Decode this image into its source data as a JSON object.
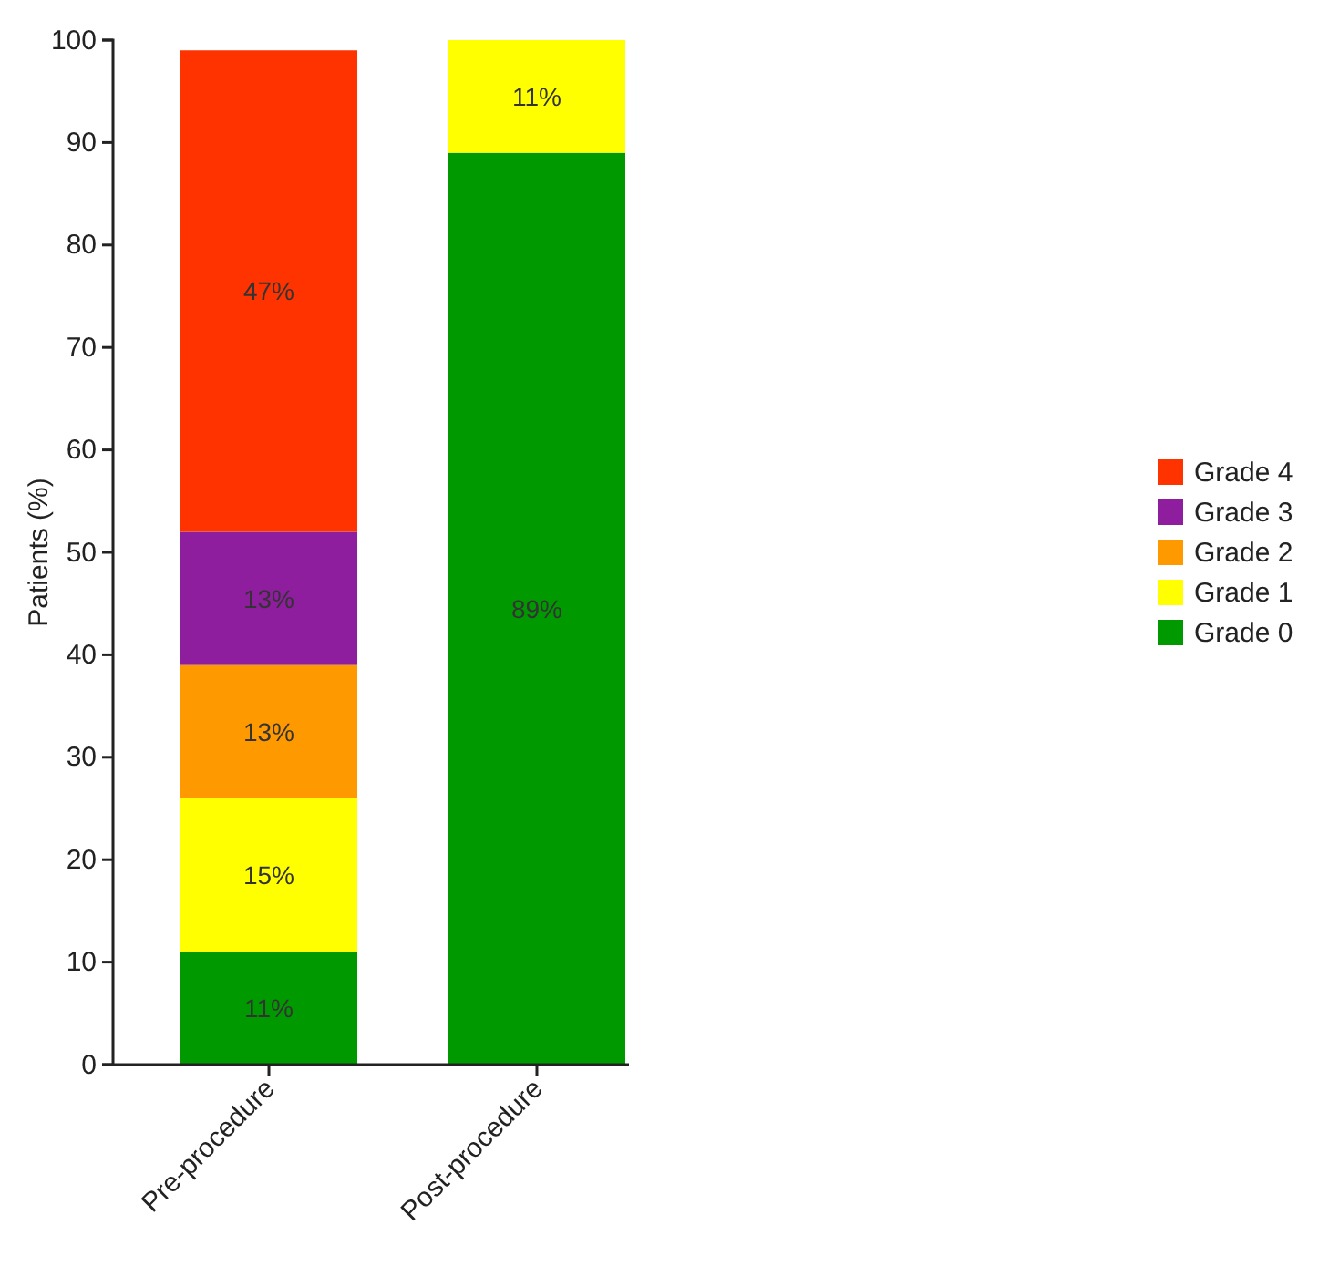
{
  "chart_data": {
    "type": "bar",
    "stacked": true,
    "ylabel": "Patients (%)",
    "categories": [
      "Pre-procedure",
      "Post-procedure"
    ],
    "ylim": [
      0,
      100
    ],
    "yticks": [
      0,
      10,
      20,
      30,
      40,
      50,
      60,
      70,
      80,
      90,
      100
    ],
    "grid": false,
    "legend": "right",
    "series": [
      {
        "name": "Grade 0",
        "color": "#009900",
        "values": [
          11,
          89
        ],
        "value_labels": [
          "11%",
          "89%"
        ]
      },
      {
        "name": "Grade 1",
        "color": "#ffff00",
        "values": [
          15,
          11
        ],
        "value_labels": [
          "15%",
          "11%"
        ]
      },
      {
        "name": "Grade 2",
        "color": "#ff9900",
        "values": [
          13,
          0
        ],
        "value_labels": [
          "13%",
          null
        ]
      },
      {
        "name": "Grade 3",
        "color": "#8e1e9e",
        "values": [
          13,
          0
        ],
        "value_labels": [
          "13%",
          null
        ]
      },
      {
        "name": "Grade 4",
        "color": "#ff3300",
        "values": [
          47,
          0
        ],
        "value_labels": [
          "47%",
          null
        ]
      }
    ]
  }
}
